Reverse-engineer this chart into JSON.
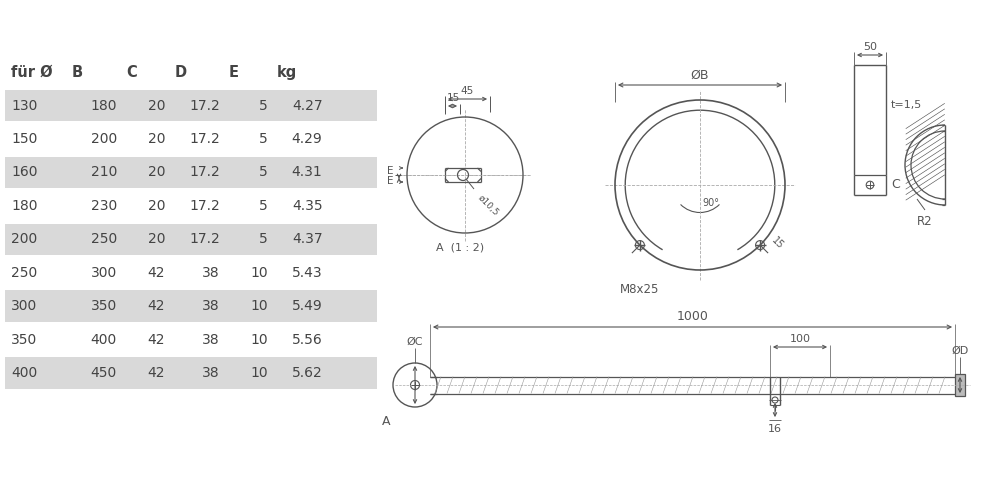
{
  "table_headers": [
    "für Ø",
    "B",
    "C",
    "D",
    "E",
    "kg"
  ],
  "table_rows": [
    [
      "130",
      "180",
      "20",
      "17.2",
      "5",
      "4.27"
    ],
    [
      "150",
      "200",
      "20",
      "17.2",
      "5",
      "4.29"
    ],
    [
      "160",
      "210",
      "20",
      "17.2",
      "5",
      "4.31"
    ],
    [
      "180",
      "230",
      "20",
      "17.2",
      "5",
      "4.35"
    ],
    [
      "200",
      "250",
      "20",
      "17.2",
      "5",
      "4.37"
    ],
    [
      "250",
      "300",
      "42",
      "38",
      "10",
      "5.43"
    ],
    [
      "300",
      "350",
      "42",
      "38",
      "10",
      "5.49"
    ],
    [
      "350",
      "400",
      "42",
      "38",
      "10",
      "5.56"
    ],
    [
      "400",
      "450",
      "42",
      "38",
      "10",
      "5.62"
    ]
  ],
  "shaded_rows": [
    0,
    2,
    4,
    6,
    8
  ],
  "row_bg_shaded": "#d9d9d9",
  "row_bg_plain": "#ffffff",
  "text_color": "#444444",
  "bg_color": "#ffffff",
  "line_color": "#555555",
  "dim_color": "#555555"
}
